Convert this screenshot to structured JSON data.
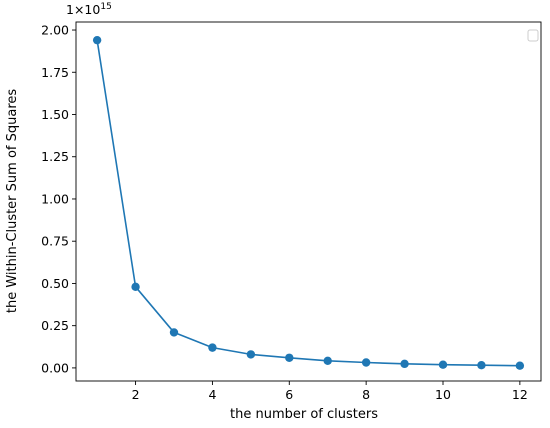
{
  "chart_data": {
    "type": "line",
    "x": [
      1,
      2,
      3,
      4,
      5,
      6,
      7,
      8,
      9,
      10,
      11,
      12
    ],
    "series": [
      {
        "values": [
          1940000000000000.0,
          480000000000000.0,
          210000000000000.0,
          120000000000000.0,
          80000000000000.0,
          60000000000000.0,
          42000000000000.0,
          32000000000000.0,
          24000000000000.0,
          19000000000000.0,
          16000000000000.0,
          13000000000000.0
        ],
        "color": "#1f77b4",
        "marker": "circle"
      }
    ],
    "xlabel": "the number of clusters",
    "ylabel": "the Within-Cluster Sum of Squares",
    "xlim": [
      0.45,
      12.55
    ],
    "ylim": [
      -77500000000000.0,
      2047500000000000.0
    ],
    "xticks": [
      2,
      4,
      6,
      8,
      10,
      12
    ],
    "xtick_labels": [
      "2",
      "4",
      "6",
      "8",
      "10",
      "12"
    ],
    "yticks": [
      0,
      250000000000000.0,
      500000000000000.0,
      750000000000000.0,
      1000000000000000.0,
      1250000000000000.0,
      1500000000000000.0,
      1750000000000000.0,
      2000000000000000.0
    ],
    "ytick_labels": [
      "0.00",
      "0.25",
      "0.50",
      "0.75",
      "1.00",
      "1.25",
      "1.50",
      "1.75",
      "2.00"
    ],
    "offset_text": "1e15",
    "offset_mantissa": "1×10",
    "offset_exponent": "15",
    "grid": false,
    "legend": "top-right, empty"
  }
}
